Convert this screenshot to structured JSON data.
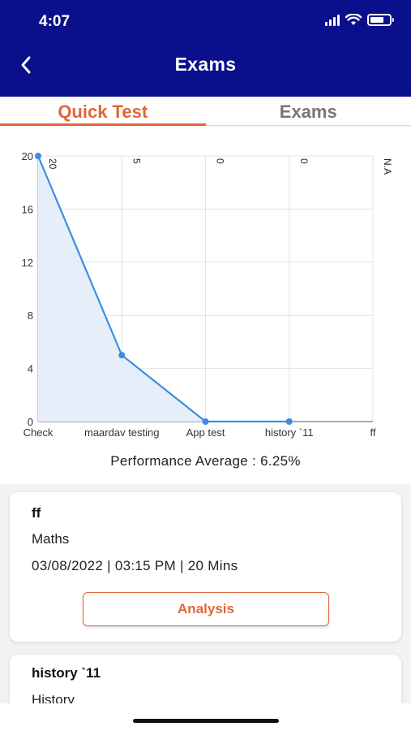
{
  "status_bar": {
    "time": "4:07",
    "icons": [
      "signal-icon",
      "wifi-icon",
      "battery-icon"
    ]
  },
  "header": {
    "title": "Exams",
    "back_icon": "chevron-left-icon",
    "bg_color": "#0a0f8c"
  },
  "tabs": [
    {
      "label": "Quick Test",
      "active": true
    },
    {
      "label": "Exams",
      "active": false
    }
  ],
  "accent_color": "#e0663a",
  "chart_data": {
    "type": "area",
    "categories": [
      "Check",
      "maardav testing",
      "App test",
      "history `11",
      "ff"
    ],
    "values": [
      20,
      5,
      0,
      0,
      null
    ],
    "point_labels": [
      "20",
      "5",
      "0",
      "0",
      "N.A"
    ],
    "y_ticks": [
      "0",
      "4",
      "8",
      "12",
      "16",
      "20"
    ],
    "ylim": [
      0,
      20
    ],
    "grid": true,
    "line_color": "#3b8ee0",
    "fill_color": "#e6eefa"
  },
  "performance": {
    "text": "Performance Average : 6.25%"
  },
  "cards": [
    {
      "title": "ff",
      "subject": "Maths",
      "meta": "03/08/2022 | 03:15 PM | 20 Mins",
      "button_label": "Analysis"
    },
    {
      "title": "history `11",
      "subject": "History"
    }
  ]
}
